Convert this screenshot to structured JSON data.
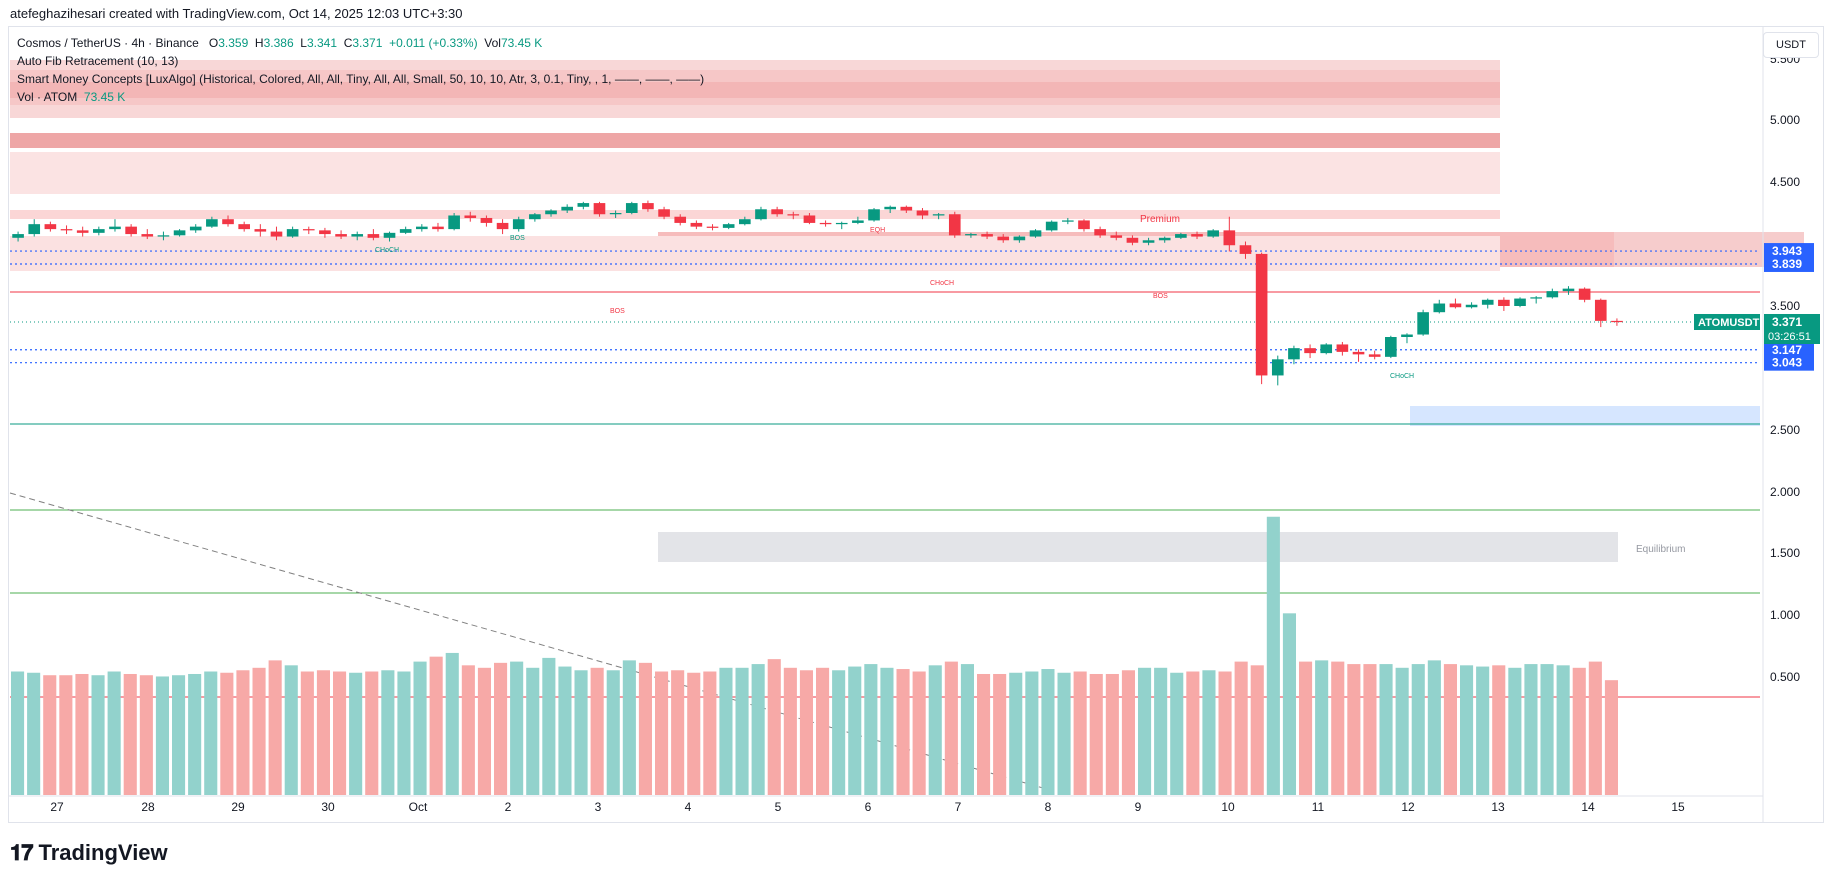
{
  "caption": "atefeghazihesari created with TradingView.com, Oct 14, 2025 12:03 UTC+3:30",
  "legend": {
    "symbol_line": "Cosmos / TetherUS · 4h · Binance",
    "o_label": "O",
    "o": "3.359",
    "h_label": "H",
    "h": "3.386",
    "l_label": "L",
    "l": "3.341",
    "c_label": "C",
    "c": "3.371",
    "change": "+0.011 (+0.33%)",
    "vol_label": "Vol",
    "vol": "73.45 K",
    "indicator1": "Auto Fib Retracement (10, 13)",
    "indicator2": "Smart Money Concepts [LuxAlgo] (Historical, Colored, All, All, Tiny, All, All, Small, 50, 10, 10, Atr, 3, 0.1, Tiny, , 1, ——, ——, ——)",
    "indicator3": "Vol · ATOM",
    "indicator3_value": "73.45 K"
  },
  "currency": "USDT",
  "brand": "TradingView",
  "chart_data": {
    "type": "candlestick",
    "timeframe": "4h",
    "y_ticks": [
      5.5,
      5.0,
      4.5,
      4.0,
      3.5,
      2.5,
      2.0,
      1.5,
      1.0,
      0.5
    ],
    "y_tick_labels": [
      "5.500",
      "5.000",
      "4.500",
      "",
      "3.500",
      "2.500",
      "2.000",
      "1.500",
      "1.000",
      "0.500"
    ],
    "x_labels": [
      "27",
      "28",
      "29",
      "30",
      "Oct",
      "2",
      "3",
      "4",
      "5",
      "6",
      "7",
      "8",
      "9",
      "10",
      "11",
      "12",
      "13",
      "14",
      "15"
    ],
    "last_price": "3.371",
    "countdown": "03:26:51",
    "symbol_tag": "ATOMUSDT",
    "price_tags": [
      {
        "value": 3.943,
        "label": "3.943",
        "color": "#2962ff"
      },
      {
        "value": 3.839,
        "label": "3.839",
        "color": "#2962ff"
      },
      {
        "value": 3.147,
        "label": "3.147",
        "color": "#2962ff"
      },
      {
        "value": 3.043,
        "label": "3.043",
        "color": "#2962ff"
      }
    ],
    "annotations": [
      {
        "text": "Premium",
        "color": "#f23645"
      },
      {
        "text": "Equilibrium",
        "color": "#9598a1"
      },
      {
        "text": "CHoCH",
        "color": "#089981"
      },
      {
        "text": "BOS",
        "color": "#089981"
      },
      {
        "text": "EQH",
        "color": "#f23645"
      },
      {
        "text": "CHoCH",
        "color": "#f23645"
      },
      {
        "text": "BOS",
        "color": "#f23645"
      },
      {
        "text": "BOS",
        "color": "#f23645"
      },
      {
        "text": "CHoCH",
        "color": "#089981"
      }
    ],
    "candles": [
      [
        4.05,
        4.1,
        4.02,
        4.08
      ],
      [
        4.08,
        4.2,
        4.06,
        4.16
      ],
      [
        4.16,
        4.18,
        4.1,
        4.12
      ],
      [
        4.12,
        4.15,
        4.08,
        4.11
      ],
      [
        4.11,
        4.14,
        4.06,
        4.09
      ],
      [
        4.09,
        4.14,
        4.07,
        4.12
      ],
      [
        4.12,
        4.2,
        4.1,
        4.14
      ],
      [
        4.14,
        4.16,
        4.06,
        4.08
      ],
      [
        4.08,
        4.12,
        4.04,
        4.06
      ],
      [
        4.06,
        4.1,
        4.03,
        4.07
      ],
      [
        4.07,
        4.12,
        4.06,
        4.11
      ],
      [
        4.11,
        4.16,
        4.09,
        4.14
      ],
      [
        4.14,
        4.22,
        4.13,
        4.2
      ],
      [
        4.2,
        4.23,
        4.14,
        4.16
      ],
      [
        4.16,
        4.18,
        4.1,
        4.12
      ],
      [
        4.12,
        4.16,
        4.06,
        4.1
      ],
      [
        4.1,
        4.14,
        4.03,
        4.06
      ],
      [
        4.06,
        4.14,
        4.05,
        4.12
      ],
      [
        4.12,
        4.14,
        4.08,
        4.11
      ],
      [
        4.11,
        4.13,
        4.05,
        4.08
      ],
      [
        4.08,
        4.11,
        4.04,
        4.06
      ],
      [
        4.06,
        4.1,
        4.03,
        4.08
      ],
      [
        4.08,
        4.12,
        4.03,
        4.05
      ],
      [
        4.05,
        4.1,
        4.02,
        4.09
      ],
      [
        4.09,
        4.14,
        4.08,
        4.12
      ],
      [
        4.12,
        4.16,
        4.1,
        4.14
      ],
      [
        4.14,
        4.17,
        4.1,
        4.12
      ],
      [
        4.12,
        4.25,
        4.11,
        4.23
      ],
      [
        4.23,
        4.26,
        4.18,
        4.21
      ],
      [
        4.21,
        4.23,
        4.14,
        4.17
      ],
      [
        4.17,
        4.2,
        4.08,
        4.12
      ],
      [
        4.12,
        4.22,
        4.1,
        4.2
      ],
      [
        4.2,
        4.25,
        4.18,
        4.24
      ],
      [
        4.24,
        4.28,
        4.22,
        4.27
      ],
      [
        4.27,
        4.32,
        4.25,
        4.3
      ],
      [
        4.3,
        4.34,
        4.28,
        4.33
      ],
      [
        4.33,
        4.34,
        4.22,
        4.24
      ],
      [
        4.24,
        4.27,
        4.21,
        4.25
      ],
      [
        4.25,
        4.34,
        4.24,
        4.33
      ],
      [
        4.33,
        4.35,
        4.26,
        4.28
      ],
      [
        4.28,
        4.3,
        4.2,
        4.22
      ],
      [
        4.22,
        4.24,
        4.15,
        4.17
      ],
      [
        4.17,
        4.19,
        4.12,
        4.14
      ],
      [
        4.14,
        4.16,
        4.11,
        4.13
      ],
      [
        4.13,
        4.17,
        4.12,
        4.16
      ],
      [
        4.16,
        4.22,
        4.15,
        4.2
      ],
      [
        4.2,
        4.3,
        4.19,
        4.28
      ],
      [
        4.28,
        4.3,
        4.22,
        4.24
      ],
      [
        4.24,
        4.26,
        4.2,
        4.23
      ],
      [
        4.23,
        4.25,
        4.16,
        4.17
      ],
      [
        4.17,
        4.19,
        4.14,
        4.16
      ],
      [
        4.16,
        4.18,
        4.12,
        4.17
      ],
      [
        4.17,
        4.22,
        4.16,
        4.19
      ],
      [
        4.19,
        4.29,
        4.18,
        4.28
      ],
      [
        4.28,
        4.31,
        4.25,
        4.3
      ],
      [
        4.3,
        4.31,
        4.25,
        4.27
      ],
      [
        4.27,
        4.29,
        4.2,
        4.23
      ],
      [
        4.23,
        4.25,
        4.2,
        4.24
      ],
      [
        4.24,
        4.26,
        4.05,
        4.07
      ],
      [
        4.07,
        4.09,
        4.05,
        4.08
      ],
      [
        4.08,
        4.1,
        4.04,
        4.06
      ],
      [
        4.06,
        4.08,
        4.01,
        4.03
      ],
      [
        4.03,
        4.07,
        4.01,
        4.06
      ],
      [
        4.06,
        4.12,
        4.05,
        4.11
      ],
      [
        4.11,
        4.19,
        4.1,
        4.18
      ],
      [
        4.18,
        4.21,
        4.16,
        4.19
      ],
      [
        4.19,
        4.2,
        4.1,
        4.12
      ],
      [
        4.12,
        4.14,
        4.05,
        4.07
      ],
      [
        4.07,
        4.1,
        4.03,
        4.05
      ],
      [
        4.05,
        4.07,
        3.99,
        4.01
      ],
      [
        4.01,
        4.05,
        3.99,
        4.03
      ],
      [
        4.03,
        4.06,
        4.01,
        4.05
      ],
      [
        4.05,
        4.09,
        4.04,
        4.08
      ],
      [
        4.08,
        4.1,
        4.04,
        4.06
      ],
      [
        4.06,
        4.12,
        4.05,
        4.11
      ],
      [
        4.11,
        4.22,
        3.94,
        3.99
      ],
      [
        3.99,
        4.02,
        3.88,
        3.92
      ],
      [
        3.92,
        3.93,
        2.87,
        2.94
      ],
      [
        2.94,
        3.1,
        2.86,
        3.07
      ],
      [
        3.07,
        3.18,
        3.03,
        3.16
      ],
      [
        3.16,
        3.19,
        3.08,
        3.12
      ],
      [
        3.12,
        3.2,
        3.11,
        3.19
      ],
      [
        3.19,
        3.21,
        3.1,
        3.13
      ],
      [
        3.13,
        3.15,
        3.05,
        3.11
      ],
      [
        3.11,
        3.14,
        3.07,
        3.09
      ],
      [
        3.09,
        3.26,
        3.08,
        3.25
      ],
      [
        3.25,
        3.28,
        3.2,
        3.27
      ],
      [
        3.27,
        3.47,
        3.26,
        3.45
      ],
      [
        3.45,
        3.55,
        3.44,
        3.52
      ],
      [
        3.52,
        3.56,
        3.48,
        3.49
      ],
      [
        3.49,
        3.53,
        3.48,
        3.51
      ],
      [
        3.51,
        3.56,
        3.48,
        3.55
      ],
      [
        3.55,
        3.57,
        3.46,
        3.5
      ],
      [
        3.5,
        3.57,
        3.49,
        3.56
      ],
      [
        3.56,
        3.58,
        3.52,
        3.57
      ],
      [
        3.57,
        3.64,
        3.56,
        3.62
      ],
      [
        3.62,
        3.66,
        3.59,
        3.64
      ],
      [
        3.64,
        3.65,
        3.53,
        3.55
      ],
      [
        3.55,
        3.56,
        3.33,
        3.38
      ],
      [
        3.38,
        3.4,
        3.34,
        3.37
      ]
    ],
    "volume_peak_label": "",
    "volumes": [
      0.55,
      0.54,
      0.52,
      0.52,
      0.53,
      0.52,
      0.55,
      0.53,
      0.52,
      0.51,
      0.52,
      0.53,
      0.55,
      0.54,
      0.56,
      0.58,
      0.64,
      0.6,
      0.55,
      0.56,
      0.55,
      0.54,
      0.55,
      0.56,
      0.55,
      0.63,
      0.67,
      0.7,
      0.6,
      0.58,
      0.62,
      0.63,
      0.58,
      0.66,
      0.59,
      0.56,
      0.58,
      0.56,
      0.64,
      0.62,
      0.55,
      0.56,
      0.54,
      0.55,
      0.58,
      0.58,
      0.61,
      0.65,
      0.58,
      0.56,
      0.58,
      0.56,
      0.59,
      0.61,
      0.58,
      0.57,
      0.55,
      0.6,
      0.63,
      0.61,
      0.53,
      0.53,
      0.54,
      0.55,
      0.57,
      0.54,
      0.55,
      0.53,
      0.53,
      0.56,
      0.58,
      0.58,
      0.54,
      0.55,
      0.56,
      0.55,
      0.63,
      0.6,
      1.8,
      1.02,
      0.63,
      0.64,
      0.63,
      0.61,
      0.61,
      0.61,
      0.58,
      0.61,
      0.64,
      0.61,
      0.6,
      0.59,
      0.6,
      0.58,
      0.61,
      0.61,
      0.6,
      0.58,
      0.63,
      0.48
    ]
  }
}
